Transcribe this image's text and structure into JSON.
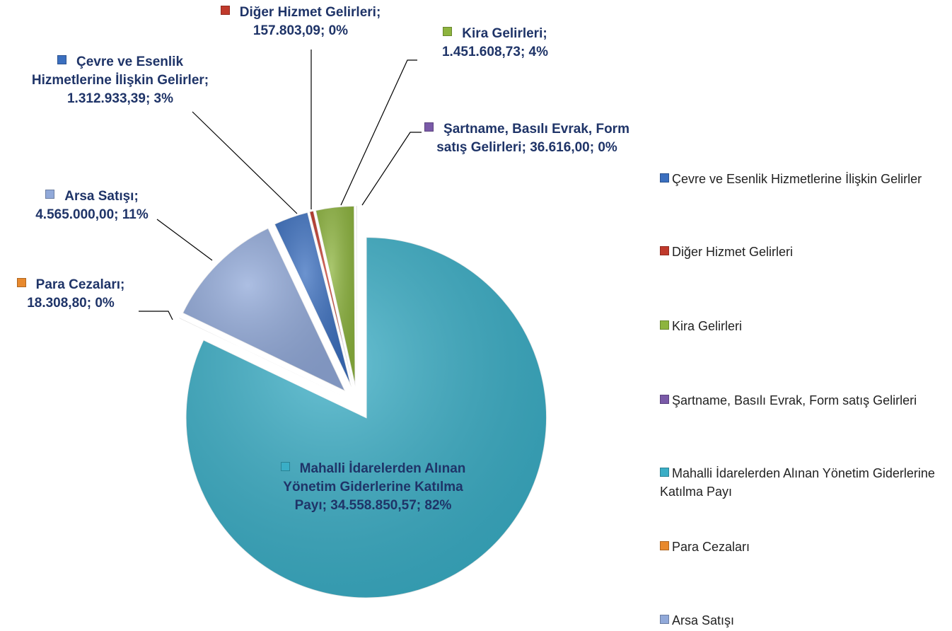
{
  "chart_data": {
    "type": "pie",
    "categories": [
      "Çevre ve Esenlik Hizmetlerine İlişkin Gelirler",
      "Diğer Hizmet Gelirleri",
      "Kira Gelirleri",
      "Şartname, Basılı Evrak, Form satış Gelirleri",
      "Mahalli İdarelerden Alınan Yönetim Giderlerine Katılma Payı",
      "Para Cezaları",
      "Arsa Satışı"
    ],
    "values": [
      1312933.39,
      157803.09,
      1451608.73,
      36616.0,
      34558850.57,
      18308.8,
      4565000.0
    ],
    "value_labels": [
      "1.312.933,39",
      "157.803,09",
      "1.451.608,73",
      "36.616,00",
      "34.558.850,57",
      "18.308,80",
      "4.565.000,00"
    ],
    "percents": [
      3,
      0,
      4,
      0,
      82,
      0,
      11
    ],
    "percent_labels": [
      "3%",
      "0%",
      "4%",
      "0%",
      "82%",
      "0%",
      "11%"
    ],
    "label_separator": ";",
    "colors": [
      "#3b6fbf",
      "#c0392b",
      "#8db43e",
      "#7a5aa8",
      "#3aaec6",
      "#e8892d",
      "#91a9d9"
    ],
    "legend": "right"
  }
}
